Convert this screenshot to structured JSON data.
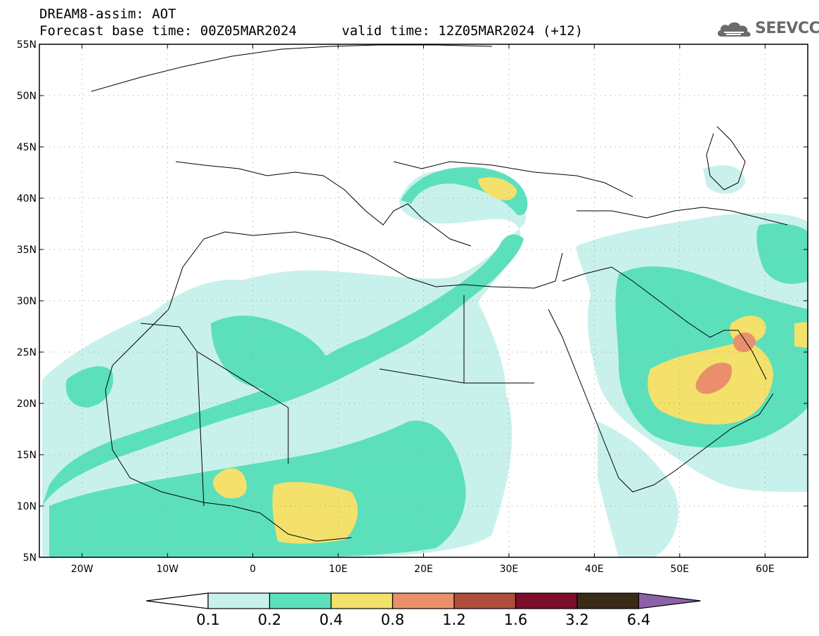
{
  "header": {
    "title": "DREAM8-assim: AOT",
    "base_time": "Forecast base time: 00Z05MAR2024",
    "valid_time": "valid time: 12Z05MAR2024 (+12)"
  },
  "logo": {
    "text": "SEEVCCC",
    "icon": "cloud-icon"
  },
  "map": {
    "lon_range": [
      -25,
      65
    ],
    "lat_range": [
      5,
      55
    ],
    "lat_ticks": [
      "5N",
      "10N",
      "15N",
      "20N",
      "25N",
      "30N",
      "35N",
      "40N",
      "45N",
      "50N",
      "55N"
    ],
    "lon_ticks": [
      "20W",
      "10W",
      "0",
      "10E",
      "20E",
      "30E",
      "40E",
      "50E",
      "60E"
    ],
    "grid": "dotted"
  },
  "colorbar": {
    "labels": [
      "0.1",
      "0.2",
      "0.4",
      "0.8",
      "1.2",
      "1.6",
      "3.2",
      "6.4"
    ],
    "colors": [
      "#ffffff",
      "#c9f1ec",
      "#5ce0bb",
      "#f3e16c",
      "#ea8f6b",
      "#ae4d3b",
      "#7c0d2b",
      "#3a2a18",
      "#8b62a8"
    ]
  }
}
